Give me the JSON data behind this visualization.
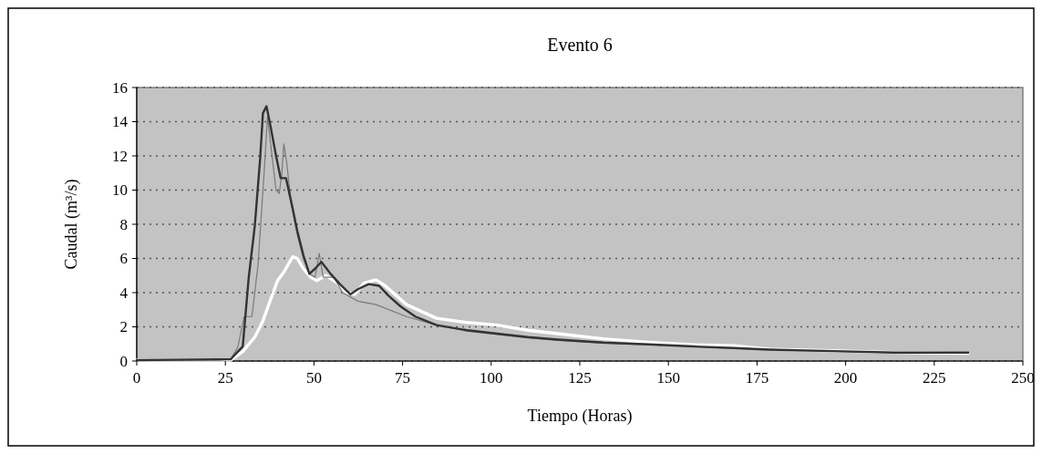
{
  "chart_data": {
    "type": "line",
    "title": "Evento 6",
    "xlabel": "Tiempo (Horas)",
    "ylabel": "Caudal (m³/s)",
    "xlim": [
      0,
      250
    ],
    "xticks": [
      0,
      25,
      50,
      75,
      100,
      125,
      150,
      175,
      200,
      225,
      250
    ],
    "ylim": [
      0,
      16
    ],
    "yticks": [
      0,
      2,
      4,
      6,
      8,
      10,
      12,
      14,
      16
    ],
    "grid": "y",
    "marker": "none",
    "series": [
      {
        "color": "#ffffff",
        "x": [
          0,
          20,
          26.5,
          29.9,
          33.3,
          35.5,
          37.6,
          39.7,
          41.5,
          44,
          45.3,
          47,
          49.1,
          50.8,
          53.4,
          56.4,
          59,
          61.5,
          64.1,
          67.5,
          70.1,
          76.1,
          84.6,
          93.2,
          101.7,
          110.3,
          118.8,
          131.6,
          144.4,
          157.3,
          168.4,
          178.6,
          196.6,
          213.7,
          234.6
        ],
        "values": [
          0.05,
          0.05,
          0.05,
          0.55,
          1.4,
          2.3,
          3.5,
          4.7,
          5.2,
          6.1,
          6.0,
          5.4,
          4.9,
          4.7,
          5.0,
          4.6,
          4.0,
          3.9,
          4.55,
          4.75,
          4.4,
          3.3,
          2.5,
          2.25,
          2.1,
          1.8,
          1.6,
          1.3,
          1.1,
          0.95,
          0.9,
          0.7,
          0.6,
          0.5,
          0.45
        ]
      },
      {
        "color": "#7a7a7a",
        "x": [
          0,
          23,
          26.5,
          28.5,
          30.3,
          32.5,
          34.2,
          35.9,
          36.9,
          38,
          39.3,
          40.2,
          40.9,
          41.5,
          42.3,
          43.6,
          45.3,
          47,
          48.7,
          50.3,
          51.5,
          52.6,
          55.6,
          58.1,
          62.4,
          67.5,
          76.1,
          84.6,
          93.2,
          101.7,
          110.3,
          118.8,
          131.6,
          144.4,
          157.3,
          168.4,
          178.6,
          196.6,
          213.7,
          234.6
        ],
        "values": [
          0.05,
          0.05,
          0.1,
          0.8,
          2.6,
          2.6,
          5.6,
          10.9,
          14.3,
          12.3,
          10.0,
          9.8,
          10.9,
          12.7,
          11.6,
          9.2,
          7.4,
          6.0,
          5.1,
          4.9,
          6.3,
          4.9,
          4.9,
          4.0,
          3.5,
          3.3,
          2.6,
          2.1,
          1.75,
          1.55,
          1.35,
          1.2,
          1.05,
          0.95,
          0.85,
          0.74,
          0.65,
          0.56,
          0.48,
          0.48
        ]
      },
      {
        "color": "#333333",
        "x": [
          0,
          23,
          26.5,
          29.9,
          31.6,
          33.3,
          34.8,
          35.6,
          36.6,
          37.6,
          39.3,
          40.6,
          42.1,
          43.6,
          45.3,
          47,
          48.7,
          50.3,
          52.1,
          54.7,
          57.3,
          60.3,
          62.4,
          65.4,
          68.4,
          70.9,
          74.4,
          78.6,
          84.6,
          93.2,
          101.7,
          110.3,
          118.8,
          131.6,
          144.4,
          157.3,
          168.4,
          178.6,
          196.6,
          213.7,
          234.6
        ],
        "values": [
          0.05,
          0.1,
          0.1,
          0.85,
          4.9,
          7.9,
          11.8,
          14.5,
          14.9,
          13.9,
          12.0,
          10.7,
          10.7,
          9.3,
          7.6,
          6.2,
          5.1,
          5.4,
          5.8,
          5.1,
          4.5,
          3.9,
          4.2,
          4.5,
          4.4,
          3.85,
          3.2,
          2.6,
          2.1,
          1.8,
          1.6,
          1.4,
          1.25,
          1.08,
          0.97,
          0.85,
          0.76,
          0.67,
          0.58,
          0.49,
          0.49
        ]
      }
    ]
  }
}
